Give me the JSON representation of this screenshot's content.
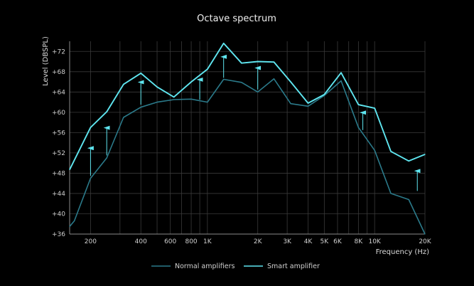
{
  "chart_data": {
    "type": "line",
    "title": "Octave spectrum",
    "xlabel": "Frequency (Hz)",
    "ylabel": "Level (DBSPL)",
    "x_scale": "log",
    "xlim": [
      150,
      20000
    ],
    "ylim": [
      36,
      74
    ],
    "grid": true,
    "legend_position": "bottom-center",
    "x_ticks": [
      {
        "value": 200,
        "label": "200"
      },
      {
        "value": 400,
        "label": "400"
      },
      {
        "value": 600,
        "label": "600"
      },
      {
        "value": 800,
        "label": "800"
      },
      {
        "value": 1000,
        "label": "1K"
      },
      {
        "value": 2000,
        "label": "2K"
      },
      {
        "value": 3000,
        "label": "3K"
      },
      {
        "value": 4000,
        "label": "4K"
      },
      {
        "value": 5000,
        "label": "5K"
      },
      {
        "value": 6000,
        "label": "6K"
      },
      {
        "value": 8000,
        "label": "8K"
      },
      {
        "value": 10000,
        "label": "10K"
      },
      {
        "value": 20000,
        "label": "20K"
      }
    ],
    "y_ticks": [
      {
        "value": 36,
        "label": "+36"
      },
      {
        "value": 40,
        "label": "+40"
      },
      {
        "value": 44,
        "label": "+44"
      },
      {
        "value": 48,
        "label": "+48"
      },
      {
        "value": 52,
        "label": "+52"
      },
      {
        "value": 56,
        "label": "+56"
      },
      {
        "value": 60,
        "label": "+60"
      },
      {
        "value": 64,
        "label": "+64"
      },
      {
        "value": 68,
        "label": "+68"
      },
      {
        "value": 72,
        "label": "+72"
      }
    ],
    "minor_x_gridlines": [
      300,
      500,
      700,
      900,
      7000,
      9000
    ],
    "series": [
      {
        "name": "Normal amplifiers",
        "color": "#2b7a8a",
        "points": [
          [
            150,
            37.5
          ],
          [
            160,
            38.6
          ],
          [
            200,
            47.0
          ],
          [
            250,
            51.0
          ],
          [
            315,
            59.0
          ],
          [
            400,
            61.0
          ],
          [
            500,
            62.0
          ],
          [
            630,
            62.5
          ],
          [
            800,
            62.6
          ],
          [
            1000,
            62.0
          ],
          [
            1250,
            66.5
          ],
          [
            1600,
            65.9
          ],
          [
            2000,
            64.0
          ],
          [
            2500,
            66.6
          ],
          [
            3150,
            61.7
          ],
          [
            4000,
            61.2
          ],
          [
            5000,
            63.3
          ],
          [
            6300,
            66.2
          ],
          [
            8000,
            57.0
          ],
          [
            10000,
            52.5
          ],
          [
            12500,
            44.0
          ],
          [
            16000,
            42.8
          ],
          [
            20000,
            36.0
          ]
        ]
      },
      {
        "name": "Smart amplifier",
        "color": "#5fe6f0",
        "points": [
          [
            150,
            48.7
          ],
          [
            200,
            57.0
          ],
          [
            250,
            60.1
          ],
          [
            315,
            65.5
          ],
          [
            400,
            67.7
          ],
          [
            500,
            65.0
          ],
          [
            630,
            63.0
          ],
          [
            800,
            66.0
          ],
          [
            1000,
            68.5
          ],
          [
            1250,
            73.6
          ],
          [
            1600,
            69.7
          ],
          [
            2000,
            70.0
          ],
          [
            2500,
            69.9
          ],
          [
            3150,
            66.0
          ],
          [
            4000,
            61.8
          ],
          [
            5000,
            63.5
          ],
          [
            6300,
            67.8
          ],
          [
            8000,
            61.5
          ],
          [
            10000,
            60.8
          ],
          [
            12500,
            52.3
          ],
          [
            16000,
            50.4
          ],
          [
            20000,
            51.7
          ]
        ]
      }
    ],
    "arrows": [
      {
        "x": 200,
        "from": 47.5,
        "to": 53.5
      },
      {
        "x": 250,
        "from": 51.5,
        "to": 57.5
      },
      {
        "x": 400,
        "from": 61.5,
        "to": 66.5
      },
      {
        "x": 900,
        "from": 62.5,
        "to": 67.0
      },
      {
        "x": 1250,
        "from": 66.8,
        "to": 71.5
      },
      {
        "x": 2000,
        "from": 64.5,
        "to": 69.3
      },
      {
        "x": 8500,
        "from": 56.5,
        "to": 60.5
      },
      {
        "x": 18000,
        "from": 44.5,
        "to": 49.0
      }
    ],
    "colors": {
      "background": "#000000",
      "grid": "#3a3a3a",
      "axis": "#8a8a8a",
      "arrow": "#5fe6f0"
    }
  }
}
